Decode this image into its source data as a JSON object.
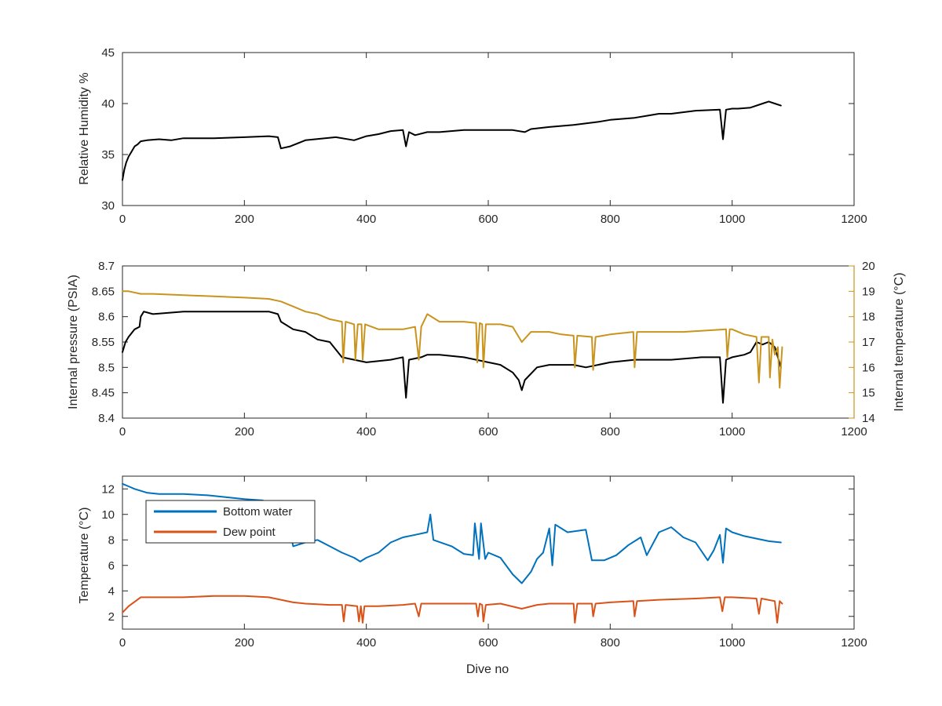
{
  "colors": {
    "black": "#000000",
    "axis": "#262626",
    "blue": "#0072BD",
    "orange": "#D95319",
    "gold": "#C9941E"
  },
  "chart_data": [
    {
      "type": "line",
      "title": "",
      "xlabel": "",
      "ylabel": "Relative Humidity %",
      "xlim": [
        0,
        1200
      ],
      "ylim": [
        30,
        45
      ],
      "xticks": [
        "0",
        "200",
        "400",
        "600",
        "800",
        "1000",
        "1200"
      ],
      "yticks": [
        "30",
        "35",
        "40",
        "45"
      ],
      "grid": false,
      "series": [
        {
          "color": "#000000",
          "x": [
            0,
            3,
            6,
            10,
            15,
            20,
            25,
            30,
            40,
            60,
            80,
            100,
            150,
            200,
            240,
            255,
            260,
            275,
            300,
            350,
            380,
            400,
            420,
            440,
            460,
            465,
            470,
            480,
            500,
            520,
            560,
            600,
            640,
            660,
            670,
            700,
            740,
            780,
            800,
            840,
            860,
            880,
            900,
            940,
            980,
            985,
            990,
            1000,
            1010,
            1030,
            1050,
            1060,
            1070,
            1080
          ],
          "y": [
            32.5,
            33.5,
            34.2,
            34.8,
            35.3,
            35.8,
            36.0,
            36.3,
            36.4,
            36.5,
            36.4,
            36.6,
            36.6,
            36.7,
            36.8,
            36.7,
            35.6,
            35.8,
            36.4,
            36.7,
            36.4,
            36.8,
            37.0,
            37.3,
            37.4,
            35.8,
            37.2,
            36.9,
            37.2,
            37.2,
            37.4,
            37.4,
            37.4,
            37.2,
            37.5,
            37.7,
            37.9,
            38.2,
            38.4,
            38.6,
            38.8,
            39.0,
            39.0,
            39.3,
            39.4,
            36.5,
            39.4,
            39.5,
            39.5,
            39.6,
            40.0,
            40.2,
            40.0,
            39.8
          ]
        }
      ]
    },
    {
      "type": "line",
      "title": "",
      "xlabel": "",
      "ylabel": "Internal pressure (PSIA)",
      "y2label": "Internal temperature (°C)",
      "xlim": [
        0,
        1200
      ],
      "ylim": [
        8.4,
        8.7
      ],
      "y2lim": [
        14,
        20
      ],
      "xticks": [
        "0",
        "200",
        "400",
        "600",
        "800",
        "1000",
        "1200"
      ],
      "yticks": [
        "8.4",
        "8.45",
        "8.5",
        "8.55",
        "8.6",
        "8.65",
        "8.7"
      ],
      "y2ticks": [
        "14",
        "15",
        "16",
        "17",
        "18",
        "19",
        "20"
      ],
      "grid": false,
      "series": [
        {
          "axis": "left",
          "color": "#000000",
          "x": [
            0,
            5,
            10,
            20,
            28,
            30,
            35,
            50,
            100,
            150,
            200,
            240,
            255,
            260,
            280,
            300,
            320,
            340,
            360,
            380,
            400,
            440,
            460,
            465,
            470,
            490,
            500,
            520,
            560,
            580,
            600,
            620,
            640,
            650,
            655,
            660,
            680,
            700,
            740,
            760,
            800,
            840,
            900,
            950,
            980,
            985,
            990,
            1000,
            1020,
            1030,
            1040,
            1050,
            1060,
            1070,
            1080
          ],
          "y": [
            8.53,
            8.55,
            8.56,
            8.575,
            8.58,
            8.6,
            8.61,
            8.605,
            8.61,
            8.61,
            8.61,
            8.61,
            8.605,
            8.59,
            8.575,
            8.57,
            8.555,
            8.55,
            8.52,
            8.515,
            8.51,
            8.515,
            8.52,
            8.44,
            8.515,
            8.52,
            8.525,
            8.525,
            8.52,
            8.515,
            8.51,
            8.505,
            8.49,
            8.475,
            8.455,
            8.475,
            8.5,
            8.505,
            8.505,
            8.5,
            8.51,
            8.515,
            8.515,
            8.52,
            8.52,
            8.43,
            8.515,
            8.52,
            8.525,
            8.53,
            8.55,
            8.545,
            8.55,
            8.54,
            8.5
          ]
        },
        {
          "axis": "right",
          "color": "#C9941E",
          "x": [
            0,
            10,
            30,
            50,
            100,
            150,
            200,
            240,
            260,
            280,
            300,
            320,
            340,
            360,
            362,
            366,
            380,
            382,
            386,
            392,
            394,
            398,
            420,
            460,
            480,
            486,
            490,
            500,
            520,
            560,
            580,
            582,
            586,
            590,
            592,
            596,
            620,
            640,
            655,
            670,
            700,
            720,
            740,
            742,
            746,
            770,
            772,
            776,
            800,
            838,
            840,
            844,
            880,
            920,
            990,
            992,
            996,
            1000,
            1020,
            1040,
            1044,
            1048,
            1060,
            1062,
            1066,
            1070,
            1075,
            1078,
            1082
          ],
          "y": [
            19.0,
            19.0,
            18.9,
            18.9,
            18.85,
            18.8,
            18.75,
            18.7,
            18.6,
            18.4,
            18.2,
            18.1,
            17.9,
            17.8,
            16.2,
            17.8,
            17.7,
            16.3,
            17.7,
            17.7,
            16.3,
            17.7,
            17.5,
            17.5,
            17.6,
            16.3,
            17.6,
            18.1,
            17.8,
            17.8,
            17.75,
            16.2,
            17.75,
            17.7,
            16.0,
            17.7,
            17.7,
            17.6,
            17.0,
            17.4,
            17.4,
            17.3,
            17.25,
            16.0,
            17.25,
            17.2,
            15.9,
            17.2,
            17.3,
            17.4,
            16.0,
            17.4,
            17.4,
            17.4,
            17.5,
            16.4,
            17.5,
            17.5,
            17.3,
            17.2,
            15.4,
            17.2,
            17.2,
            15.6,
            17.1,
            16.5,
            16.8,
            15.2,
            16.8
          ]
        }
      ]
    },
    {
      "type": "line",
      "title": "",
      "xlabel": "Dive no",
      "ylabel": "Temperature (°C)",
      "xlim": [
        0,
        1200
      ],
      "ylim": [
        1,
        13
      ],
      "xticks": [
        "0",
        "200",
        "400",
        "600",
        "800",
        "1000",
        "1200"
      ],
      "yticks": [
        "2",
        "4",
        "6",
        "8",
        "10",
        "12"
      ],
      "grid": false,
      "legend": "upper-left",
      "series": [
        {
          "name": "Bottom water",
          "color": "#0072BD",
          "x": [
            0,
            10,
            20,
            40,
            60,
            100,
            140,
            160,
            180,
            200,
            230,
            260,
            270,
            280,
            300,
            320,
            340,
            360,
            380,
            390,
            400,
            420,
            440,
            460,
            480,
            500,
            505,
            510,
            540,
            560,
            575,
            578,
            585,
            588,
            595,
            600,
            620,
            640,
            655,
            670,
            680,
            690,
            700,
            705,
            710,
            730,
            760,
            770,
            790,
            810,
            830,
            850,
            860,
            880,
            900,
            920,
            940,
            960,
            970,
            980,
            985,
            990,
            1000,
            1020,
            1040,
            1060,
            1080
          ],
          "y": [
            12.4,
            12.2,
            12.0,
            11.7,
            11.6,
            11.6,
            11.5,
            11.4,
            11.3,
            11.2,
            11.1,
            10.5,
            9.5,
            7.5,
            7.8,
            8.0,
            7.5,
            7.0,
            6.6,
            6.3,
            6.6,
            7.0,
            7.8,
            8.2,
            8.4,
            8.6,
            10.0,
            8.0,
            7.5,
            6.9,
            6.8,
            9.3,
            6.5,
            9.3,
            6.5,
            7.0,
            6.6,
            5.3,
            4.6,
            5.5,
            6.5,
            7.0,
            8.9,
            6.0,
            9.2,
            8.6,
            8.8,
            6.4,
            6.4,
            6.8,
            7.6,
            8.2,
            6.8,
            8.6,
            9.0,
            8.2,
            7.8,
            6.4,
            7.2,
            8.4,
            6.2,
            8.9,
            8.6,
            8.3,
            8.1,
            7.9,
            7.8
          ]
        },
        {
          "name": "Dew point",
          "color": "#D95319",
          "x": [
            0,
            10,
            30,
            60,
            100,
            150,
            200,
            240,
            260,
            280,
            300,
            340,
            360,
            363,
            366,
            385,
            388,
            391,
            394,
            397,
            400,
            420,
            460,
            480,
            486,
            490,
            520,
            560,
            580,
            583,
            586,
            590,
            592,
            596,
            620,
            655,
            680,
            700,
            740,
            742,
            746,
            770,
            772,
            776,
            800,
            838,
            840,
            844,
            880,
            940,
            980,
            984,
            988,
            1000,
            1040,
            1044,
            1048,
            1070,
            1074,
            1078,
            1082
          ],
          "y": [
            2.3,
            2.8,
            3.5,
            3.5,
            3.5,
            3.6,
            3.6,
            3.5,
            3.3,
            3.1,
            3.0,
            2.9,
            2.9,
            1.6,
            2.9,
            2.8,
            1.6,
            2.8,
            1.5,
            2.8,
            2.8,
            2.8,
            2.9,
            3.0,
            2.0,
            3.0,
            3.0,
            3.0,
            3.0,
            2.0,
            3.0,
            2.9,
            1.6,
            2.9,
            3.0,
            2.6,
            2.9,
            3.0,
            3.0,
            1.5,
            3.0,
            3.0,
            2.0,
            3.0,
            3.1,
            3.2,
            2.0,
            3.2,
            3.3,
            3.4,
            3.5,
            2.4,
            3.5,
            3.5,
            3.4,
            2.2,
            3.4,
            3.2,
            1.5,
            3.2,
            3.0
          ]
        }
      ]
    }
  ]
}
